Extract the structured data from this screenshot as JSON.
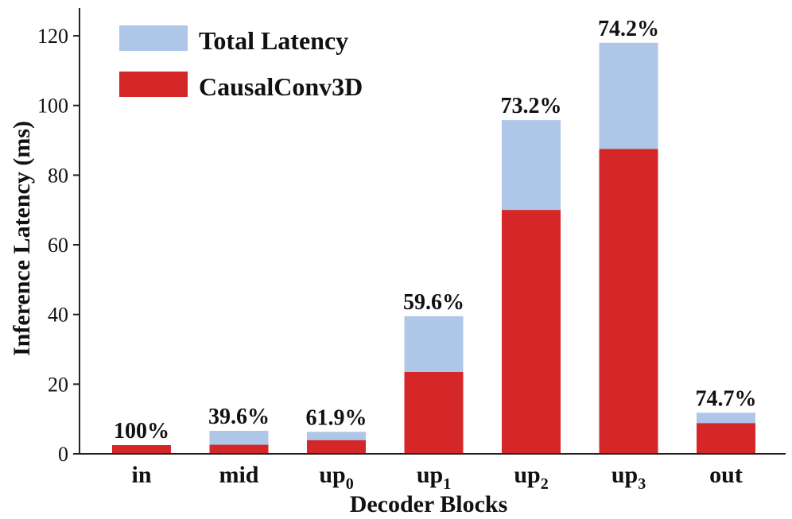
{
  "chart_data": {
    "type": "bar",
    "stacked_overlay": true,
    "categories": [
      {
        "base": "in",
        "sub": ""
      },
      {
        "base": "mid",
        "sub": ""
      },
      {
        "base": "up",
        "sub": "0"
      },
      {
        "base": "up",
        "sub": "1"
      },
      {
        "base": "up",
        "sub": "2"
      },
      {
        "base": "up",
        "sub": "3"
      },
      {
        "base": "out",
        "sub": ""
      }
    ],
    "series": [
      {
        "name": "Total Latency",
        "color": "#aec6e8",
        "values": [
          2.5,
          6.6,
          6.3,
          39.5,
          95.8,
          118.0,
          11.8
        ]
      },
      {
        "name": "CausalConv3D",
        "color": "#d62728",
        "values": [
          2.5,
          2.6,
          3.9,
          23.5,
          70.0,
          87.5,
          8.8
        ]
      }
    ],
    "percent_labels": [
      "100%",
      "39.6%",
      "61.9%",
      "59.6%",
      "73.2%",
      "74.2%",
      "74.7%"
    ],
    "xlabel": "Decoder Blocks",
    "ylabel": "Inference Latency (ms)",
    "ylim": [
      0,
      128
    ],
    "yticks": [
      0,
      20,
      40,
      60,
      80,
      100,
      120
    ],
    "legend_position": "top-left"
  }
}
